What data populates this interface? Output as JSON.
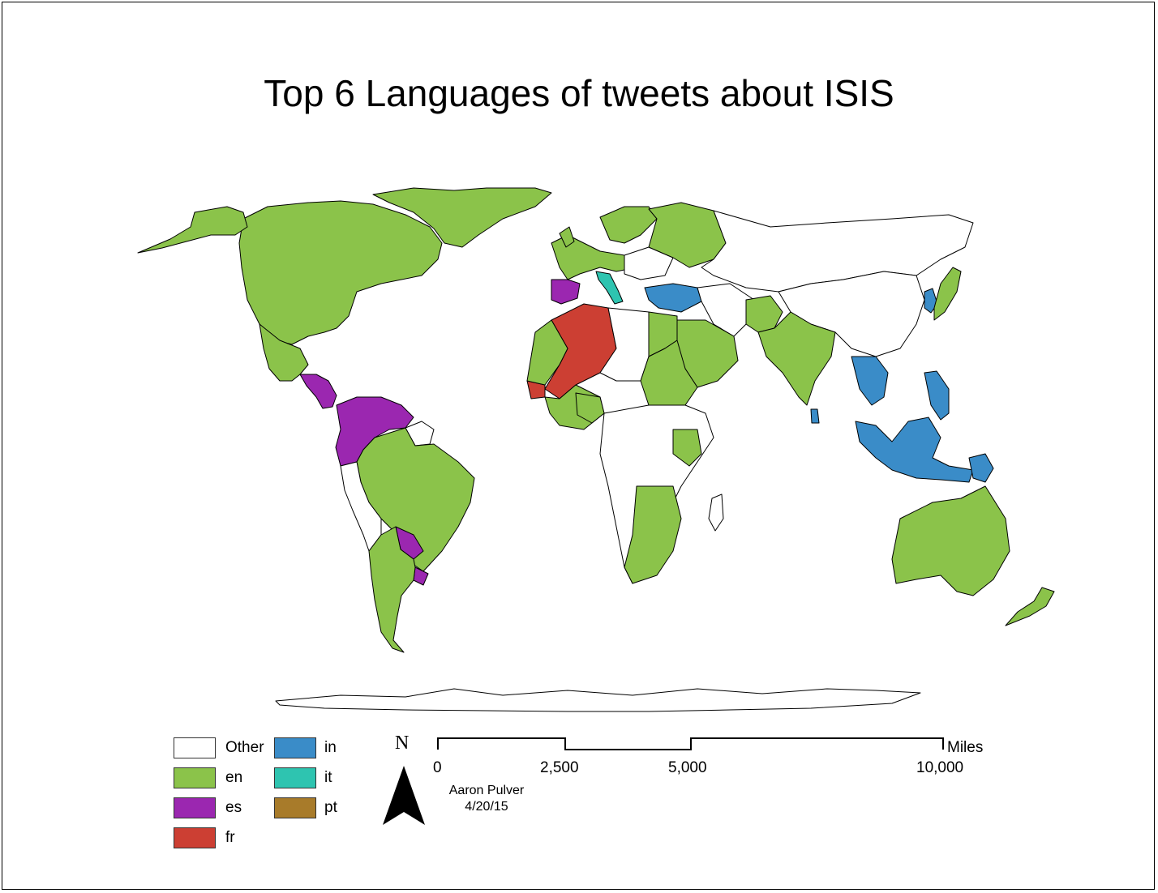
{
  "title": "Top 6 Languages of tweets about ISIS",
  "legend": [
    {
      "label": "Other",
      "color": "#ffffff"
    },
    {
      "label": "en",
      "color": "#8bc34a"
    },
    {
      "label": "es",
      "color": "#9b27b0"
    },
    {
      "label": "fr",
      "color": "#cc3f33"
    },
    {
      "label": "in",
      "color": "#3a8cc8"
    },
    {
      "label": "it",
      "color": "#2ec4b0"
    },
    {
      "label": "pt",
      "color": "#a87b2a"
    }
  ],
  "scale_bar": {
    "ticks": [
      "0",
      "2,500",
      "5,000",
      "10,000"
    ],
    "unit": "Miles"
  },
  "north_label": "N",
  "credit": {
    "author": "Aaron Pulver",
    "date": "4/20/15"
  },
  "regions": {
    "north_america": "en",
    "greenland": "en",
    "mexico": "en",
    "central_america": "es",
    "colombia_venezuela": "es",
    "brazil": "en",
    "argentina": "en",
    "paraguay": "es",
    "uruguay": "es",
    "peru_bolivia": "Other",
    "guianas": "Other",
    "western_europe": "en",
    "spain": "es",
    "italy": "it",
    "russia": "en",
    "scandinavia": "en",
    "turkey": "in",
    "algeria_mali": "fr",
    "senegal": "fr",
    "nigeria": "en",
    "west_africa": "en",
    "sudan": "en",
    "egypt": "en",
    "kenya_tanzania": "en",
    "southern_africa": "en",
    "arabia": "en",
    "india": "en",
    "pakistan": "en",
    "china": "Other",
    "mongolia": "Other",
    "korea": "in",
    "japan": "en",
    "indochina": "in",
    "indonesia": "in",
    "philippines": "in",
    "sri_lanka": "in",
    "papua": "in",
    "australia": "en",
    "new_zealand": "en",
    "antarctica": "Other",
    "central_africa": "Other",
    "madagascar": "Other"
  }
}
